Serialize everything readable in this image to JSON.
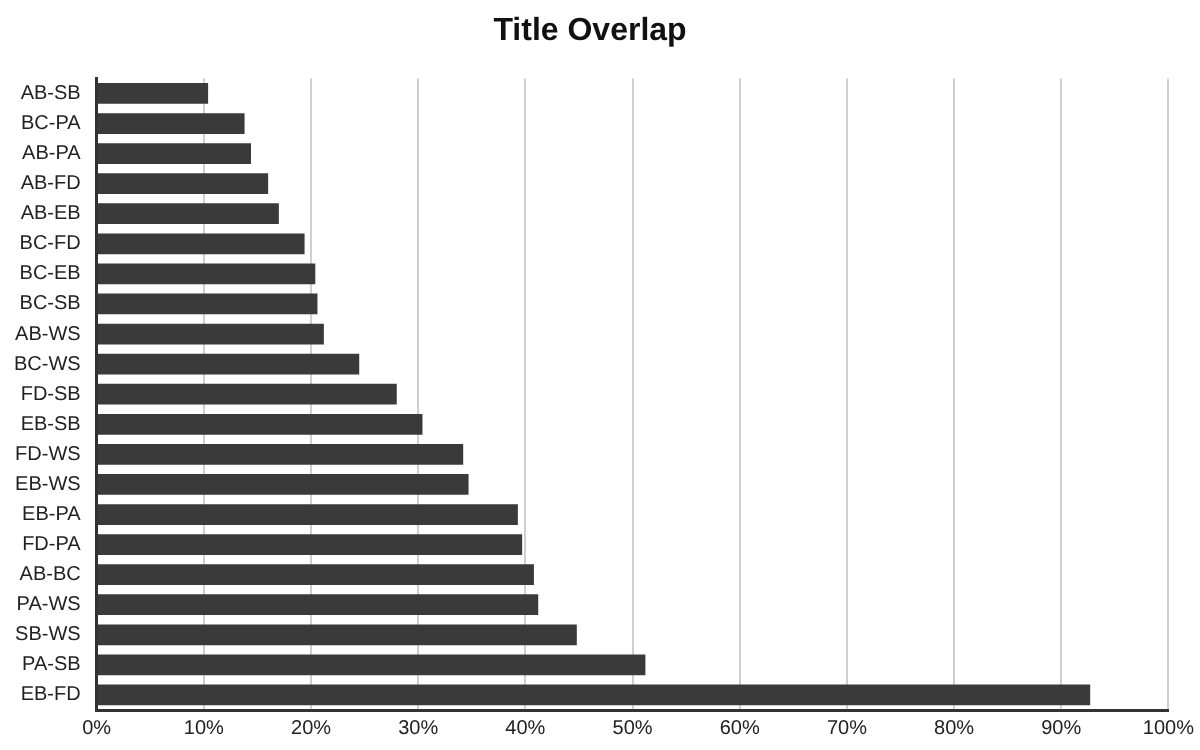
{
  "chart_data": {
    "type": "bar",
    "orientation": "horizontal",
    "title": "Title Overlap",
    "categories": [
      "AB-SB",
      "BC-PA",
      "AB-PA",
      "AB-FD",
      "AB-EB",
      "BC-FD",
      "BC-EB",
      "BC-SB",
      "AB-WS",
      "BC-WS",
      "FD-SB",
      "EB-SB",
      "FD-WS",
      "EB-WS",
      "EB-PA",
      "FD-PA",
      "AB-BC",
      "PA-WS",
      "SB-WS",
      "PA-SB",
      "EB-FD"
    ],
    "values": [
      10.4,
      13.8,
      14.4,
      16,
      17,
      19.4,
      20.4,
      20.6,
      21.2,
      24.5,
      28,
      30.4,
      34.2,
      34.7,
      39.3,
      39.7,
      40.8,
      41.2,
      44.8,
      51.2,
      92.7
    ],
    "color": "#3a3a3a",
    "xlim": [
      0,
      100
    ],
    "xticks": [
      {
        "value": 0,
        "label": "0%"
      },
      {
        "value": 10,
        "label": "10%"
      },
      {
        "value": 20,
        "label": "20%"
      },
      {
        "value": 30,
        "label": "30%"
      },
      {
        "value": 40,
        "label": "40%"
      },
      {
        "value": 50,
        "label": "50%"
      },
      {
        "value": 60,
        "label": "60%"
      },
      {
        "value": 70,
        "label": "70%"
      },
      {
        "value": 80,
        "label": "80%"
      },
      {
        "value": 90,
        "label": "90%"
      },
      {
        "value": 100,
        "label": "100%"
      }
    ],
    "grid": "x",
    "legend": false
  }
}
